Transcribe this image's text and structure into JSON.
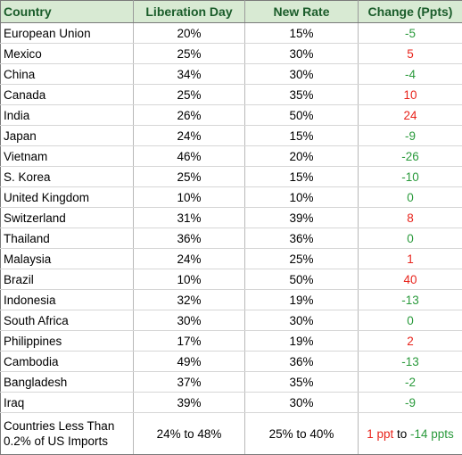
{
  "headers": {
    "country": "Country",
    "liberation_day": "Liberation Day",
    "new_rate": "New Rate",
    "change": "Change (Ppts)"
  },
  "rows": [
    {
      "country": "European Union",
      "liberation_day": "20%",
      "new_rate": "15%",
      "change": "-5",
      "direction": "down"
    },
    {
      "country": "Mexico",
      "liberation_day": "25%",
      "new_rate": "30%",
      "change": "5",
      "direction": "up"
    },
    {
      "country": "China",
      "liberation_day": "34%",
      "new_rate": "30%",
      "change": "-4",
      "direction": "down"
    },
    {
      "country": "Canada",
      "liberation_day": "25%",
      "new_rate": "35%",
      "change": "10",
      "direction": "up"
    },
    {
      "country": "India",
      "liberation_day": "26%",
      "new_rate": "50%",
      "change": "24",
      "direction": "up"
    },
    {
      "country": "Japan",
      "liberation_day": "24%",
      "new_rate": "15%",
      "change": "-9",
      "direction": "down"
    },
    {
      "country": "Vietnam",
      "liberation_day": "46%",
      "new_rate": "20%",
      "change": "-26",
      "direction": "down"
    },
    {
      "country": "S. Korea",
      "liberation_day": "25%",
      "new_rate": "15%",
      "change": "-10",
      "direction": "down"
    },
    {
      "country": "United Kingdom",
      "liberation_day": "10%",
      "new_rate": "10%",
      "change": "0",
      "direction": "down"
    },
    {
      "country": "Switzerland",
      "liberation_day": "31%",
      "new_rate": "39%",
      "change": "8",
      "direction": "up"
    },
    {
      "country": "Thailand",
      "liberation_day": "36%",
      "new_rate": "36%",
      "change": "0",
      "direction": "down"
    },
    {
      "country": "Malaysia",
      "liberation_day": "24%",
      "new_rate": "25%",
      "change": "1",
      "direction": "up"
    },
    {
      "country": "Brazil",
      "liberation_day": "10%",
      "new_rate": "50%",
      "change": "40",
      "direction": "up"
    },
    {
      "country": "Indonesia",
      "liberation_day": "32%",
      "new_rate": "19%",
      "change": "-13",
      "direction": "down"
    },
    {
      "country": "South Africa",
      "liberation_day": "30%",
      "new_rate": "30%",
      "change": "0",
      "direction": "down"
    },
    {
      "country": "Philippines",
      "liberation_day": "17%",
      "new_rate": "19%",
      "change": "2",
      "direction": "up"
    },
    {
      "country": "Cambodia",
      "liberation_day": "49%",
      "new_rate": "36%",
      "change": "-13",
      "direction": "down"
    },
    {
      "country": "Bangladesh",
      "liberation_day": "37%",
      "new_rate": "35%",
      "change": "-2",
      "direction": "down"
    },
    {
      "country": "Iraq",
      "liberation_day": "39%",
      "new_rate": "30%",
      "change": "-9",
      "direction": "down"
    }
  ],
  "footer_row": {
    "country_line1": "Countries Less Than",
    "country_line2": "0.2% of US Imports",
    "liberation_day": "24% to 48%",
    "new_rate": "25% to 40%",
    "change_part1": "1 ppt",
    "change_connector": " to ",
    "change_part2": "-14 ppts"
  },
  "colors": {
    "header_bg": "#d8ead3",
    "header_text": "#1a5c2a",
    "increase": "#e8241c",
    "decrease": "#2a9a3c"
  }
}
